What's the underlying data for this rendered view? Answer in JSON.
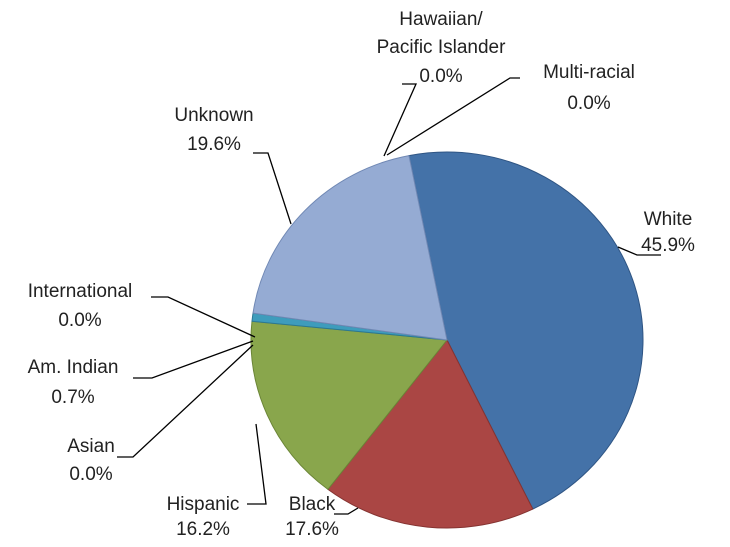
{
  "chart_data": {
    "type": "pie",
    "title": "",
    "slices": [
      {
        "name": "White",
        "value": 45.9,
        "label": "45.9%",
        "color": "#4472A8",
        "stroke": "#2F5584"
      },
      {
        "name": "Black",
        "value": 17.6,
        "label": "17.6%",
        "color": "#AA4644",
        "stroke": "#853331"
      },
      {
        "name": "Hispanic",
        "value": 16.2,
        "label": "16.2%",
        "color": "#89A64C",
        "stroke": "#6B8537"
      },
      {
        "name": "Asian",
        "value": 0.0,
        "label": "0.0%",
        "color": "#7E62A1",
        "stroke": "#5E4680"
      },
      {
        "name": "Am. Indian",
        "value": 0.7,
        "label": "0.7%",
        "color": "#3E9CBC",
        "stroke": "#2B7893"
      },
      {
        "name": "International",
        "value": 0.0,
        "label": "0.0%",
        "color": "#E0863D",
        "stroke": "#B3682A"
      },
      {
        "name": "Unknown",
        "value": 19.6,
        "label": "19.6%",
        "color": "#95ABD3",
        "stroke": "#7088B4"
      },
      {
        "name": "Hawaiian/\nPacific Islander",
        "value": 0.0,
        "label": "0.0%",
        "color": "#D59A98",
        "stroke": "#B07573"
      },
      {
        "name": "Multi-racial",
        "value": 0.0,
        "label": "0.0%",
        "color": "#B9CC8E",
        "stroke": "#96A86C"
      }
    ]
  }
}
